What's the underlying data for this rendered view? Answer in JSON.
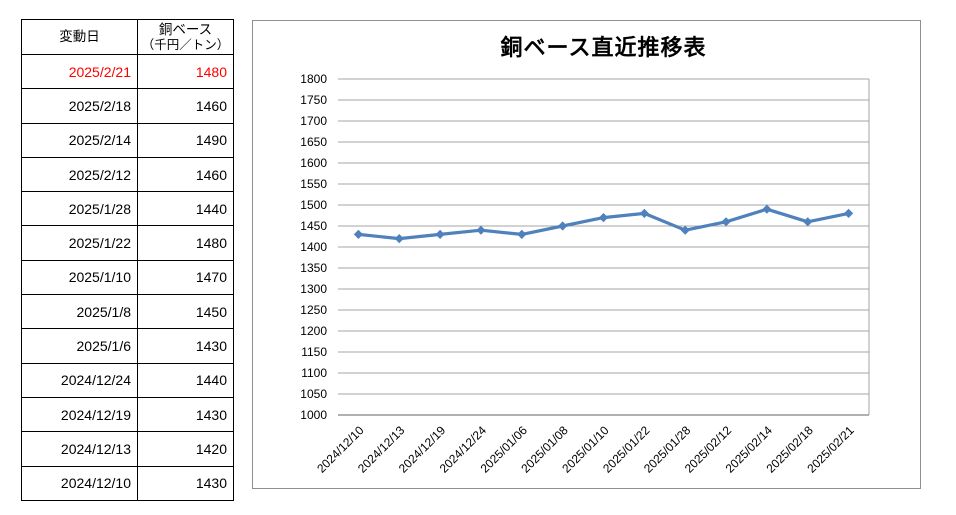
{
  "table": {
    "headers": {
      "date": "変動日",
      "value_line1": "銅ベース",
      "value_line2": "（千円／トン）"
    },
    "highlight_color": "#ff0000",
    "rows": [
      {
        "date": "2025/2/21",
        "value": "1480",
        "highlighted": true
      },
      {
        "date": "2025/2/18",
        "value": "1460",
        "highlighted": false
      },
      {
        "date": "2025/2/14",
        "value": "1490",
        "highlighted": false
      },
      {
        "date": "2025/2/12",
        "value": "1460",
        "highlighted": false
      },
      {
        "date": "2025/1/28",
        "value": "1440",
        "highlighted": false
      },
      {
        "date": "2025/1/22",
        "value": "1480",
        "highlighted": false
      },
      {
        "date": "2025/1/10",
        "value": "1470",
        "highlighted": false
      },
      {
        "date": "2025/1/8",
        "value": "1450",
        "highlighted": false
      },
      {
        "date": "2025/1/6",
        "value": "1430",
        "highlighted": false
      },
      {
        "date": "2024/12/24",
        "value": "1440",
        "highlighted": false
      },
      {
        "date": "2024/12/19",
        "value": "1430",
        "highlighted": false
      },
      {
        "date": "2024/12/13",
        "value": "1420",
        "highlighted": false
      },
      {
        "date": "2024/12/10",
        "value": "1430",
        "highlighted": false
      }
    ]
  },
  "chart_data": {
    "type": "line",
    "title": "銅ベース直近推移表",
    "categories": [
      "2024/12/10",
      "2024/12/13",
      "2024/12/19",
      "2024/12/24",
      "2025/01/06",
      "2025/01/08",
      "2025/01/10",
      "2025/01/22",
      "2025/01/28",
      "2025/02/12",
      "2025/02/14",
      "2025/02/18",
      "2025/02/21"
    ],
    "values": [
      1430,
      1420,
      1430,
      1440,
      1430,
      1450,
      1470,
      1480,
      1440,
      1460,
      1490,
      1460,
      1480
    ],
    "xlabel": "",
    "ylabel": "",
    "ylim": [
      1000,
      1800
    ],
    "ytick_step": 50,
    "grid": true,
    "legend": false,
    "marker": "diamond",
    "series_color": "#4f81bd",
    "grid_color": "#a6a6a6",
    "axis_color": "#808080",
    "tick_label_color": "#000000"
  }
}
